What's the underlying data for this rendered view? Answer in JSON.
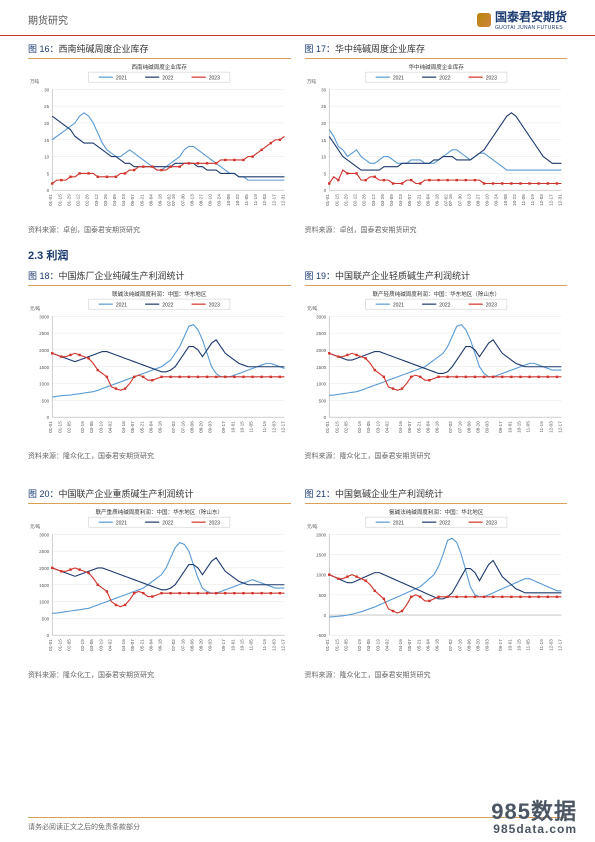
{
  "header": {
    "left": "期货研究",
    "brand": "国泰君安期货",
    "brand_sub": "GUOTAI JUNAN FUTURES"
  },
  "section_heading": "2.3  利润",
  "footer": "请务必阅读正文之后的免责条款部分",
  "watermark": {
    "big": "985数据",
    "url": "985data.com"
  },
  "legend_labels": {
    "y2021": "2021",
    "y2022": "2022",
    "y2023": "2023"
  },
  "colors": {
    "y2021": "#5b9bd5",
    "y2022": "#1f3a6e",
    "y2023": "#d0342c",
    "grid": "#e5e5e5",
    "axis": "#b0b0b0",
    "border": "#d9a15a",
    "title": "#1a3a72"
  },
  "x_ticks_dates": [
    "01-01",
    "01-15",
    "01-29",
    "02-12",
    "02-26",
    "03-12",
    "03-26",
    "04-09",
    "04-23",
    "05-07",
    "05-21",
    "06-04",
    "06-18",
    "07-02",
    "07-16",
    "07-30",
    "08-13",
    "08-27",
    "09-10",
    "09-24",
    "10-08",
    "10-22",
    "11-05",
    "11-19",
    "12-03",
    "12-17",
    "12-31"
  ],
  "x_ticks_monthly": [
    "01-01",
    "01-15",
    "02-05",
    "02-19",
    "03-05",
    "03-19",
    "04-02",
    "04-16",
    "05-07",
    "05-21",
    "06-04",
    "06-18",
    "07-02",
    "07-16",
    "08-06",
    "08-20",
    "09-03",
    "09-17",
    "10-01",
    "10-15",
    "11-05",
    "11-19",
    "12-03",
    "12-17"
  ],
  "chart16": {
    "figure_label": "图 16：",
    "title": "西南纯碱周度企业库存",
    "inner_title": "西南纯碱周度企业库存",
    "caption": "资料来源：卓创，国泰君安期货研究",
    "yaxis_unit": "万吨",
    "ylim": [
      0,
      30
    ],
    "ytick_step": 5,
    "s2021": [
      15,
      16,
      17,
      18,
      19,
      20,
      22,
      23,
      22,
      20,
      17,
      14,
      12,
      11,
      10,
      10,
      11,
      12,
      11,
      10,
      9,
      8,
      7,
      6,
      6,
      7,
      8,
      9,
      10,
      12,
      13,
      13,
      12,
      11,
      10,
      9,
      8,
      7,
      6,
      5,
      5,
      4,
      4,
      3,
      3,
      3,
      3,
      3,
      3,
      3,
      3,
      3
    ],
    "s2022": [
      22,
      21,
      20,
      19,
      18,
      16,
      15,
      14,
      14,
      14,
      13,
      12,
      11,
      10,
      10,
      9,
      8,
      8,
      7,
      7,
      7,
      7,
      7,
      7,
      7,
      7,
      7,
      8,
      8,
      8,
      8,
      8,
      7,
      7,
      6,
      6,
      6,
      5,
      5,
      5,
      5,
      4,
      4,
      4,
      4,
      4,
      4,
      4,
      4,
      4,
      4,
      4
    ],
    "s2023": [
      2,
      3,
      3,
      3,
      4,
      4,
      5,
      5,
      5,
      5,
      4,
      4,
      4,
      4,
      4,
      5,
      5,
      6,
      6,
      7,
      7,
      7,
      7,
      6,
      6,
      6,
      7,
      7,
      7,
      8,
      8,
      8,
      8,
      8,
      8,
      8,
      8,
      9,
      9,
      9,
      9,
      9,
      9,
      10,
      10,
      11,
      12,
      13,
      14,
      15,
      15,
      16
    ]
  },
  "chart17": {
    "figure_label": "图 17：",
    "title": "华中纯碱周度企业库存",
    "inner_title": "华中纯碱周度企业库存",
    "caption": "资料来源：卓创，国泰君安期货研究",
    "yaxis_unit": "万吨",
    "ylim": [
      0,
      30
    ],
    "ytick_step": 5,
    "s2021": [
      18,
      16,
      13,
      12,
      10,
      11,
      12,
      10,
      9,
      8,
      8,
      9,
      10,
      10,
      9,
      8,
      8,
      8,
      9,
      9,
      9,
      8,
      8,
      8,
      9,
      10,
      11,
      12,
      12,
      11,
      10,
      9,
      10,
      11,
      11,
      10,
      9,
      8,
      7,
      6,
      6,
      6,
      6,
      6,
      6,
      6,
      6,
      6,
      6,
      6,
      6,
      6
    ],
    "s2022": [
      16,
      14,
      12,
      10,
      9,
      8,
      7,
      6,
      6,
      6,
      6,
      6,
      7,
      7,
      7,
      7,
      8,
      8,
      8,
      8,
      8,
      8,
      8,
      9,
      9,
      10,
      10,
      10,
      9,
      9,
      9,
      9,
      10,
      11,
      12,
      14,
      16,
      18,
      20,
      22,
      23,
      22,
      20,
      18,
      16,
      14,
      12,
      10,
      9,
      8,
      8,
      8
    ],
    "s2023": [
      2,
      4,
      3,
      6,
      5,
      5,
      5,
      3,
      3,
      4,
      4,
      3,
      3,
      3,
      2,
      2,
      2,
      3,
      3,
      2,
      2,
      3,
      3,
      3,
      3,
      3,
      3,
      3,
      3,
      3,
      3,
      3,
      3,
      3,
      2,
      2,
      2,
      2,
      2,
      2,
      2,
      2,
      2,
      2,
      2,
      2,
      2,
      2,
      2,
      2,
      2,
      2
    ]
  },
  "chart18": {
    "figure_label": "图 18：",
    "title": "中国炼厂企业纯碱生产利润统计",
    "inner_title": "联碱法纯碱周度利润：中国：华东地区",
    "caption": "资料来源：隆众化工，国泰君安期货研究",
    "yaxis_unit": "元/吨",
    "ylim": [
      0,
      3000
    ],
    "ytick_step": 500,
    "s2021": [
      600,
      620,
      640,
      650,
      660,
      680,
      700,
      720,
      740,
      760,
      800,
      850,
      900,
      950,
      1000,
      1050,
      1100,
      1150,
      1200,
      1250,
      1300,
      1350,
      1400,
      1450,
      1500,
      1600,
      1700,
      1900,
      2100,
      2400,
      2700,
      2750,
      2600,
      2300,
      1900,
      1500,
      1300,
      1200,
      1200,
      1200,
      1250,
      1300,
      1350,
      1400,
      1450,
      1500,
      1550,
      1600,
      1600,
      1550,
      1500,
      1450
    ],
    "s2022": [
      1900,
      1850,
      1800,
      1750,
      1700,
      1650,
      1700,
      1750,
      1800,
      1850,
      1900,
      1950,
      1950,
      1900,
      1850,
      1800,
      1750,
      1700,
      1650,
      1600,
      1550,
      1500,
      1450,
      1400,
      1350,
      1350,
      1400,
      1500,
      1700,
      1900,
      2100,
      2100,
      2000,
      1800,
      2000,
      2200,
      2300,
      2100,
      1900,
      1800,
      1700,
      1600,
      1550,
      1500,
      1500,
      1500,
      1500,
      1500,
      1500,
      1500,
      1500,
      1500
    ],
    "s2023": [
      1900,
      1850,
      1800,
      1800,
      1850,
      1900,
      1850,
      1800,
      1750,
      1600,
      1400,
      1300,
      1200,
      900,
      850,
      800,
      850,
      1000,
      1200,
      1250,
      1200,
      1100,
      1100,
      1150,
      1200,
      1200,
      1200,
      1200,
      1200,
      1200,
      1200,
      1200,
      1200,
      1200,
      1200,
      1200,
      1200,
      1200,
      1200,
      1200,
      1200,
      1200,
      1200,
      1200,
      1200,
      1200,
      1200,
      1200,
      1200,
      1200,
      1200,
      1200
    ]
  },
  "chart19": {
    "figure_label": "图 19：",
    "title": "中国联产企业轻质碱生产利润统计",
    "inner_title": "联产轻质纯碱周度利润：中国：华东地区（除山东）",
    "caption": "资料来源：隆众化工，国泰君安期货研究",
    "yaxis_unit": "元/吨",
    "ylim": [
      0,
      3000
    ],
    "ytick_step": 500,
    "s2021": [
      650,
      660,
      680,
      700,
      720,
      740,
      760,
      800,
      850,
      900,
      950,
      1000,
      1050,
      1100,
      1150,
      1200,
      1250,
      1300,
      1350,
      1400,
      1450,
      1500,
      1600,
      1700,
      1800,
      1900,
      2100,
      2400,
      2700,
      2750,
      2600,
      2300,
      1900,
      1500,
      1300,
      1200,
      1200,
      1250,
      1300,
      1350,
      1400,
      1450,
      1500,
      1550,
      1600,
      1600,
      1550,
      1500,
      1450,
      1400,
      1400,
      1400
    ],
    "s2022": [
      1900,
      1850,
      1800,
      1750,
      1700,
      1700,
      1750,
      1800,
      1850,
      1900,
      1950,
      1950,
      1900,
      1850,
      1800,
      1750,
      1700,
      1650,
      1600,
      1550,
      1500,
      1450,
      1400,
      1350,
      1300,
      1300,
      1350,
      1500,
      1700,
      1900,
      2100,
      2100,
      2000,
      1800,
      2000,
      2200,
      2300,
      2100,
      1900,
      1800,
      1700,
      1600,
      1550,
      1500,
      1500,
      1500,
      1500,
      1500,
      1500,
      1500,
      1500,
      1500
    ],
    "s2023": [
      1900,
      1850,
      1800,
      1800,
      1850,
      1900,
      1850,
      1800,
      1750,
      1600,
      1400,
      1300,
      1200,
      900,
      850,
      800,
      850,
      1000,
      1200,
      1250,
      1200,
      1100,
      1100,
      1150,
      1200,
      1200,
      1200,
      1200,
      1200,
      1200,
      1200,
      1200,
      1200,
      1200,
      1200,
      1200,
      1200,
      1200,
      1200,
      1200,
      1200,
      1200,
      1200,
      1200,
      1200,
      1200,
      1200,
      1200,
      1200,
      1200,
      1200,
      1200
    ]
  },
  "chart20": {
    "figure_label": "图 20：",
    "title": "中国联产企业重质碱生产利润统计",
    "inner_title": "联产重质纯碱周度利润：中国：华东地区（除山东）",
    "caption": "资料来源：隆众化工，国泰君安期货研究",
    "yaxis_unit": "元/吨",
    "ylim": [
      0,
      3000
    ],
    "ytick_step": 500,
    "s2021": [
      650,
      660,
      680,
      700,
      720,
      740,
      760,
      780,
      800,
      850,
      900,
      950,
      1000,
      1050,
      1100,
      1150,
      1200,
      1250,
      1300,
      1350,
      1400,
      1500,
      1600,
      1700,
      1800,
      2000,
      2300,
      2600,
      2750,
      2700,
      2500,
      2100,
      1700,
      1400,
      1300,
      1250,
      1250,
      1300,
      1350,
      1400,
      1450,
      1500,
      1550,
      1600,
      1650,
      1600,
      1550,
      1500,
      1450,
      1400,
      1400,
      1400
    ],
    "s2022": [
      2000,
      1950,
      1900,
      1850,
      1800,
      1750,
      1800,
      1850,
      1900,
      1950,
      2000,
      2000,
      1950,
      1900,
      1850,
      1800,
      1750,
      1700,
      1650,
      1600,
      1550,
      1500,
      1450,
      1400,
      1350,
      1350,
      1400,
      1500,
      1700,
      1900,
      2100,
      2100,
      2000,
      1800,
      2000,
      2200,
      2300,
      2100,
      1900,
      1800,
      1700,
      1600,
      1550,
      1500,
      1500,
      1500,
      1500,
      1500,
      1500,
      1500,
      1500,
      1500
    ],
    "s2023": [
      2000,
      1950,
      1900,
      1900,
      1950,
      2000,
      1950,
      1900,
      1850,
      1700,
      1500,
      1400,
      1300,
      1000,
      900,
      850,
      900,
      1050,
      1250,
      1300,
      1250,
      1150,
      1150,
      1200,
      1250,
      1250,
      1250,
      1250,
      1250,
      1250,
      1250,
      1250,
      1250,
      1250,
      1250,
      1250,
      1250,
      1250,
      1250,
      1250,
      1250,
      1250,
      1250,
      1250,
      1250,
      1250,
      1250,
      1250,
      1250,
      1250,
      1250,
      1250
    ]
  },
  "chart21": {
    "figure_label": "图 21：",
    "title": "中国氨碱企业生产利润统计",
    "inner_title": "氨碱法纯碱周度利润：中国：华北地区",
    "caption": "资料来源：隆众化工，国泰君安期货研究",
    "yaxis_unit": "元/吨",
    "ylim": [
      -500,
      2000
    ],
    "ytick_step": 500,
    "s2021": [
      -50,
      -40,
      -30,
      -20,
      0,
      20,
      50,
      80,
      120,
      160,
      200,
      250,
      300,
      350,
      400,
      450,
      500,
      550,
      600,
      650,
      700,
      800,
      900,
      1000,
      1200,
      1500,
      1850,
      1900,
      1800,
      1500,
      1100,
      700,
      500,
      450,
      450,
      500,
      550,
      600,
      650,
      700,
      750,
      800,
      850,
      900,
      900,
      850,
      800,
      750,
      700,
      650,
      600,
      600
    ],
    "s2022": [
      1000,
      950,
      900,
      850,
      800,
      800,
      850,
      900,
      950,
      1000,
      1050,
      1050,
      1000,
      950,
      900,
      850,
      800,
      750,
      700,
      650,
      600,
      550,
      500,
      450,
      400,
      400,
      450,
      550,
      750,
      950,
      1150,
      1150,
      1050,
      850,
      1050,
      1250,
      1350,
      1150,
      950,
      850,
      750,
      650,
      600,
      550,
      550,
      550,
      550,
      550,
      550,
      550,
      550,
      550
    ],
    "s2023": [
      1000,
      950,
      900,
      900,
      950,
      1000,
      950,
      900,
      850,
      750,
      600,
      500,
      400,
      150,
      100,
      50,
      100,
      250,
      450,
      500,
      450,
      350,
      350,
      400,
      450,
      450,
      450,
      450,
      450,
      450,
      450,
      450,
      450,
      450,
      450,
      450,
      450,
      450,
      450,
      450,
      450,
      450,
      450,
      450,
      450,
      450,
      450,
      450,
      450,
      450,
      450,
      450
    ]
  }
}
